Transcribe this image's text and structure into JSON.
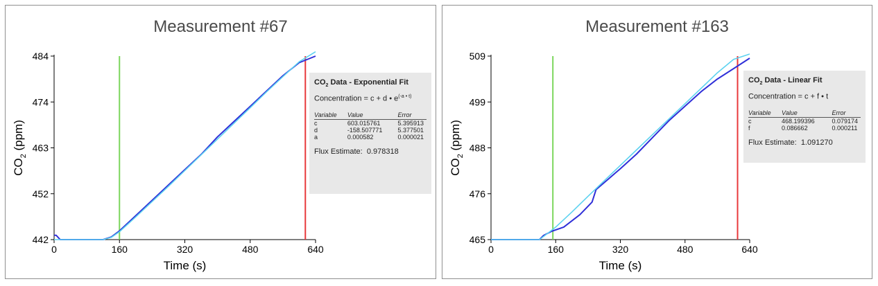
{
  "chart_data": [
    {
      "type": "line",
      "title": "Measurement #67",
      "xlabel": "Time (s)",
      "ylabel": "CO",
      "ylabel_sub": "2",
      "ylabel_tail": " (ppm)",
      "xlim": [
        0,
        640
      ],
      "ylim": [
        442,
        484
      ],
      "xticks": [
        "0",
        "160",
        "320",
        "480",
        "640"
      ],
      "yticks": [
        "442",
        "452",
        "463",
        "474",
        "484"
      ],
      "vlines": [
        {
          "x": 160,
          "color": "#7cd65c"
        },
        {
          "x": 615,
          "color": "#e8383a"
        }
      ],
      "series": [
        {
          "color": "#2f2fd8",
          "values": [
            [
              0,
              443
            ],
            [
              5,
              443
            ],
            [
              15,
              442
            ],
            [
              60,
              442
            ],
            [
              120,
              442
            ],
            [
              140,
              442.6
            ],
            [
              160,
              444
            ],
            [
              200,
              447.5
            ],
            [
              240,
              451
            ],
            [
              280,
              454.5
            ],
            [
              320,
              458
            ],
            [
              360,
              461.5
            ],
            [
              400,
              465.5
            ],
            [
              440,
              469
            ],
            [
              480,
              472.5
            ],
            [
              520,
              476
            ],
            [
              560,
              479.5
            ],
            [
              600,
              482.5
            ],
            [
              640,
              484
            ]
          ]
        },
        {
          "color": "#5cd2f0",
          "values": [
            [
              0,
              442
            ],
            [
              120,
              442
            ],
            [
              140,
              442.5
            ],
            [
              160,
              443.8
            ],
            [
              200,
              447.2
            ],
            [
              240,
              450.7
            ],
            [
              280,
              454.2
            ],
            [
              320,
              457.8
            ],
            [
              360,
              461.4
            ],
            [
              400,
              465
            ],
            [
              440,
              468.6
            ],
            [
              480,
              472.2
            ],
            [
              520,
              475.8
            ],
            [
              560,
              479.3
            ],
            [
              600,
              482.7
            ],
            [
              640,
              485
            ]
          ]
        }
      ],
      "fit_box": {
        "heading": "CO",
        "heading_sub": "2",
        "heading_tail": " Data - Exponential Fit",
        "equation_main": "Concentration = c + d • e",
        "equation_sup": "(-a • t)",
        "headers": [
          "Variable",
          "Value",
          "Error"
        ],
        "rows": [
          [
            "c",
            "603.015761",
            "5.395913"
          ],
          [
            "d",
            "-158.507771",
            "5.377501"
          ],
          [
            "a",
            "0.000582",
            "0.000021"
          ]
        ],
        "flux_label": "Flux Estimate:",
        "flux_value": "0.978318"
      }
    },
    {
      "type": "line",
      "title": "Measurement #163",
      "xlabel": "Time (s)",
      "ylabel": "CO",
      "ylabel_sub": "2",
      "ylabel_tail": " (ppm)",
      "xlim": [
        0,
        640
      ],
      "ylim": [
        465,
        509
      ],
      "xticks": [
        "0",
        "160",
        "320",
        "480",
        "640"
      ],
      "yticks": [
        "465",
        "476",
        "488",
        "499",
        "509"
      ],
      "vlines": [
        {
          "x": 153,
          "color": "#7cd65c"
        },
        {
          "x": 610,
          "color": "#e8383a"
        }
      ],
      "series": [
        {
          "color": "#2f2fd8",
          "values": [
            [
              0,
              465
            ],
            [
              120,
              465
            ],
            [
              130,
              466
            ],
            [
              150,
              467
            ],
            [
              180,
              468
            ],
            [
              220,
              471
            ],
            [
              250,
              474
            ],
            [
              260,
              477
            ],
            [
              290,
              479.5
            ],
            [
              320,
              482
            ],
            [
              360,
              485.5
            ],
            [
              400,
              489.5
            ],
            [
              440,
              493.5
            ],
            [
              480,
              497
            ],
            [
              520,
              500.5
            ],
            [
              560,
              503.5
            ],
            [
              600,
              506
            ],
            [
              640,
              508.5
            ]
          ]
        },
        {
          "color": "#5cd2f0",
          "values": [
            [
              0,
              465
            ],
            [
              120,
              465
            ],
            [
              140,
              466.5
            ],
            [
              160,
              468
            ],
            [
              200,
              471.6
            ],
            [
              240,
              475.4
            ],
            [
              280,
              479.1
            ],
            [
              320,
              482.8
            ],
            [
              360,
              486.5
            ],
            [
              400,
              490.2
            ],
            [
              440,
              493.9
            ],
            [
              480,
              497.6
            ],
            [
              520,
              501.3
            ],
            [
              560,
              505
            ],
            [
              600,
              508.2
            ],
            [
              640,
              509.5
            ]
          ]
        }
      ],
      "fit_box": {
        "heading": "CO",
        "heading_sub": "2",
        "heading_tail": " Data - Linear Fit",
        "equation_main": "Concentration = c + f • t",
        "equation_sup": "",
        "headers": [
          "Variable",
          "Value",
          "Error"
        ],
        "rows": [
          [
            "c",
            "468.199396",
            "0.079174"
          ],
          [
            "f",
            "0.086662",
            "0.000211"
          ]
        ],
        "flux_label": "Flux Estimate:",
        "flux_value": "1.091270"
      }
    }
  ]
}
